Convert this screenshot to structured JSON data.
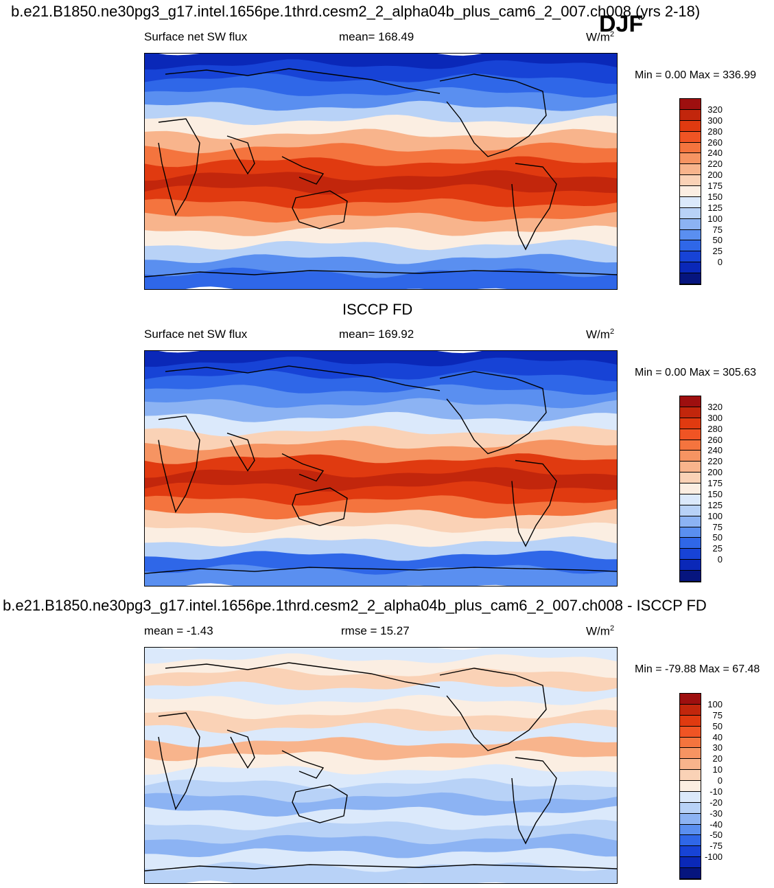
{
  "figure": {
    "case_title": "b.e21.B1850.ne30pg3_g17.intel.1656pe.1thrd.cesm2_2_alpha04b_plus_cam6_2_007.ch008 (yrs 2-18)",
    "season": "DJF",
    "obs_title": "ISCCP FD",
    "diff_title": "b.e21.B1850.ne30pg3_g17.intel.1656pe.1thrd.cesm2_2_alpha04b_plus_cam6_2_007.ch008 - ISCCP FD"
  },
  "panels": [
    {
      "variable": "Surface net SW flux",
      "stat_text": "mean= 168.49",
      "units_base": "W/m",
      "units_exp": "2",
      "minmax": "Min =    0.00 Max = 336.99"
    },
    {
      "variable": "Surface net SW flux",
      "stat_text": "mean= 169.92",
      "units_base": "W/m",
      "units_exp": "2",
      "minmax": "Min =    0.00 Max = 305.63"
    },
    {
      "variable": "",
      "stat_text": "mean =  -1.43",
      "stat2_text": "rmse =  15.27",
      "units_base": "W/m",
      "units_exp": "2",
      "minmax": "Min = -79.88 Max =  67.48"
    }
  ],
  "colorbars": {
    "abs": {
      "ticks": [
        "320",
        "300",
        "280",
        "260",
        "240",
        "220",
        "200",
        "175",
        "150",
        "125",
        "100",
        "75",
        "50",
        "25",
        "0"
      ],
      "colors": [
        "#9e0f0f",
        "#c2260c",
        "#e03a10",
        "#f05424",
        "#f4743e",
        "#f69462",
        "#f8b48c",
        "#fad2b6",
        "#fbeee2",
        "#dbe9fb",
        "#b8d2f7",
        "#8cb3f3",
        "#5a8ff0",
        "#2f67e8",
        "#1743d6",
        "#0a28b8",
        "#06157e"
      ]
    },
    "diff": {
      "ticks": [
        "100",
        "75",
        "50",
        "40",
        "30",
        "20",
        "10",
        "0",
        "-10",
        "-20",
        "-30",
        "-40",
        "-50",
        "-75",
        "-100"
      ],
      "colors": [
        "#9e0f0f",
        "#c2260c",
        "#e03a10",
        "#f05424",
        "#f4743e",
        "#f69462",
        "#f8b48c",
        "#fad2b6",
        "#fbeee2",
        "#dbe9fb",
        "#b8d2f7",
        "#8cb3f3",
        "#5a8ff0",
        "#2f67e8",
        "#1743d6",
        "#0a28b8",
        "#06157e"
      ]
    }
  },
  "map_fields": {
    "abs_model": {
      "bands": [
        "#0a28b8",
        "#1743d6",
        "#2f67e8",
        "#5a8ff0",
        "#b8d2f7",
        "#fbeee2",
        "#f8b48c",
        "#f4743e",
        "#e03a10",
        "#c2260c",
        "#e03a10",
        "#f4743e",
        "#f8b48c",
        "#fbeee2",
        "#b8d2f7",
        "#5a8ff0",
        "#2f67e8"
      ]
    },
    "abs_obs": {
      "bands": [
        "#0a28b8",
        "#1743d6",
        "#2f67e8",
        "#5a8ff0",
        "#8cb3f3",
        "#dbe9fb",
        "#fad2b6",
        "#f69462",
        "#e03a10",
        "#c2260c",
        "#e03a10",
        "#f4743e",
        "#fad2b6",
        "#fbeee2",
        "#b8d2f7",
        "#2f67e8",
        "#5a8ff0"
      ]
    },
    "diff": {
      "bands": [
        "#dbe9fb",
        "#fbeee2",
        "#fad2b6",
        "#dbe9fb",
        "#fbeee2",
        "#fad2b6",
        "#dbe9fb",
        "#f8b48c",
        "#fbeee2",
        "#dbe9fb",
        "#b8d2f7",
        "#8cb3f3",
        "#dbe9fb",
        "#b8d2f7",
        "#8cb3f3",
        "#dbe9fb",
        "#b8d2f7"
      ]
    }
  }
}
